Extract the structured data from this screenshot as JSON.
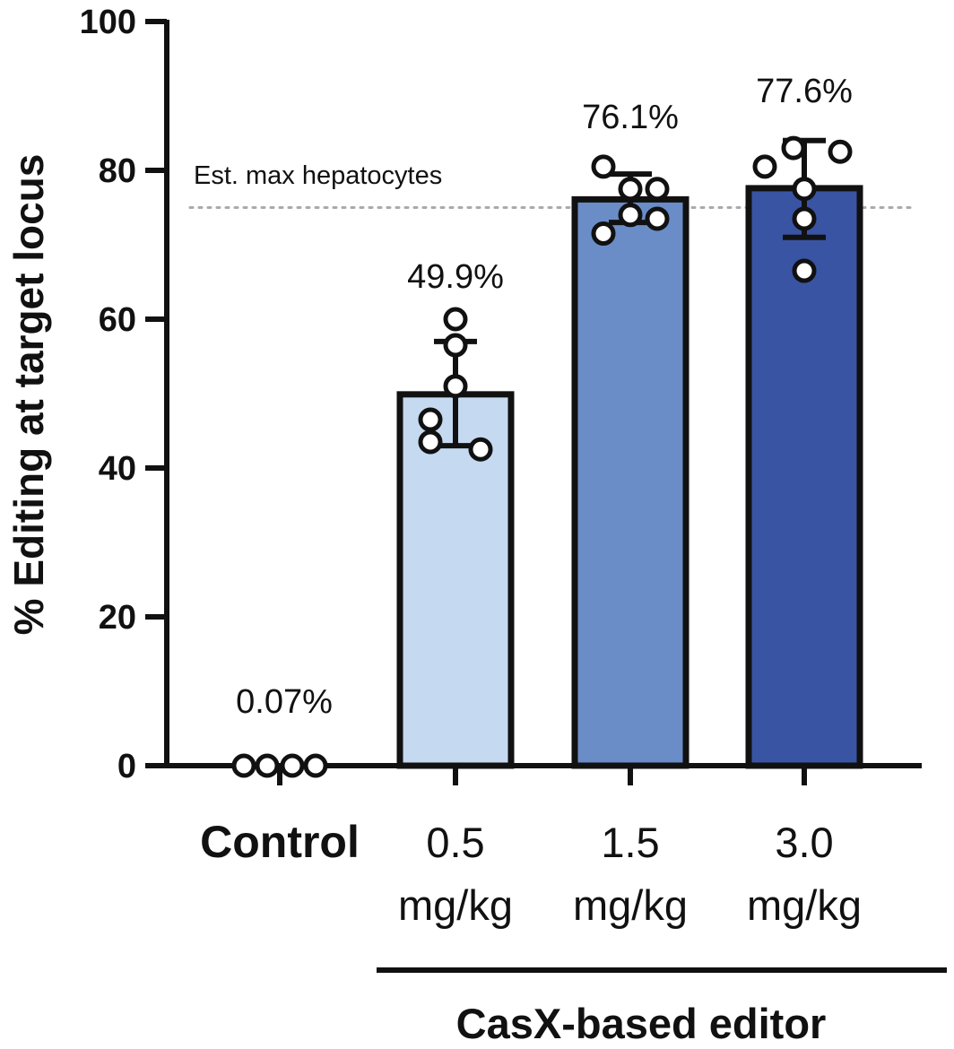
{
  "chart_data": {
    "type": "bar",
    "ylabel": "% Editing at target locus",
    "ylim": [
      0,
      100
    ],
    "yticks": [
      0,
      20,
      40,
      60,
      80,
      100
    ],
    "categories": [
      {
        "lines": [
          "Control"
        ],
        "bold": true
      },
      {
        "lines": [
          "0.5",
          "mg/kg"
        ],
        "bold": false
      },
      {
        "lines": [
          "1.5",
          "mg/kg"
        ],
        "bold": false
      },
      {
        "lines": [
          "3.0",
          "mg/kg"
        ],
        "bold": false
      }
    ],
    "bars": [
      {
        "value": 0.07,
        "label": "0.07%",
        "color": null,
        "error": null,
        "points": [
          0,
          0,
          0,
          0
        ]
      },
      {
        "value": 49.9,
        "label": "49.9%",
        "color": "#c5daf0",
        "error": [
          43,
          57
        ],
        "points": [
          60,
          56.5,
          51,
          46.5,
          42.5,
          43.5
        ]
      },
      {
        "value": 76.1,
        "label": "76.1%",
        "color": "#6a8dc8",
        "error": [
          73,
          79.5
        ],
        "points": [
          80.5,
          77.5,
          77.5,
          74,
          71.5,
          73.5
        ]
      },
      {
        "value": 77.6,
        "label": "77.6%",
        "color": "#3a54a4",
        "error": [
          71,
          84
        ],
        "points": [
          80.5,
          83,
          82.5,
          77.5,
          73.5,
          66.5
        ]
      }
    ],
    "reference_line": {
      "value": 75,
      "label": "Est. max hepatocytes",
      "style": "dotted",
      "color": "#aaaaaa"
    },
    "group": {
      "label": "CasX-based editor",
      "spans": [
        "0.5 mg/kg",
        "3.0 mg/kg"
      ]
    },
    "grid": false,
    "legend": "none"
  }
}
